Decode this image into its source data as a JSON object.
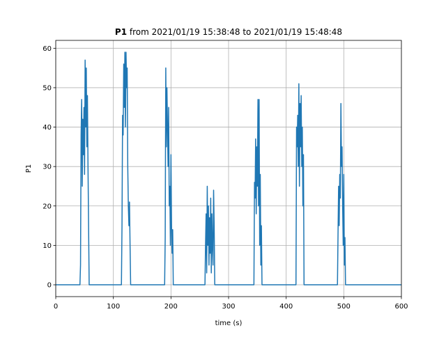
{
  "chart_data": {
    "type": "line",
    "title": {
      "bold": "P1",
      "rest": "from 2021/01/19 15:38:48 to 2021/01/19 15:48:48"
    },
    "xlabel": "time (s)",
    "ylabel": "P1",
    "xlim": [
      0,
      600
    ],
    "ylim": [
      -3,
      62
    ],
    "xticks": [
      0,
      100,
      200,
      300,
      400,
      500,
      600
    ],
    "yticks": [
      0,
      10,
      20,
      30,
      40,
      50,
      60
    ],
    "grid": true,
    "series": [
      {
        "name": "P1",
        "color": "#1f77b4",
        "x": [
          0,
          42,
          43,
          44,
          45,
          46,
          47,
          48,
          49,
          50,
          51,
          52,
          53,
          54,
          55,
          56,
          57,
          58,
          114,
          115,
          116,
          117,
          118,
          119,
          120,
          121,
          122,
          123,
          124,
          125,
          126,
          127,
          128,
          129,
          130,
          189,
          190,
          191,
          192,
          193,
          194,
          195,
          196,
          197,
          198,
          199,
          200,
          201,
          202,
          203,
          204,
          259,
          260,
          261,
          262,
          263,
          264,
          265,
          266,
          267,
          268,
          269,
          270,
          271,
          272,
          273,
          274,
          275,
          276,
          344,
          345,
          346,
          347,
          348,
          349,
          350,
          351,
          352,
          353,
          354,
          355,
          356,
          357,
          358,
          417,
          418,
          419,
          420,
          421,
          422,
          423,
          424,
          425,
          426,
          427,
          428,
          429,
          430,
          431,
          489,
          490,
          491,
          492,
          493,
          494,
          495,
          496,
          497,
          498,
          499,
          500,
          501,
          502,
          503,
          600
        ],
        "values": [
          0,
          0,
          5,
          38,
          47,
          25,
          42,
          33,
          45,
          28,
          57,
          40,
          55,
          35,
          48,
          30,
          15,
          0,
          0,
          15,
          43,
          38,
          56,
          45,
          59,
          40,
          59,
          50,
          55,
          30,
          20,
          15,
          21,
          10,
          0,
          0,
          12,
          55,
          35,
          50,
          40,
          30,
          45,
          20,
          25,
          10,
          33,
          15,
          8,
          14,
          0,
          0,
          10,
          18,
          3,
          25,
          10,
          20,
          5,
          17,
          8,
          22,
          3,
          18,
          10,
          5,
          24,
          15,
          0,
          0,
          26,
          22,
          37,
          18,
          35,
          25,
          47,
          20,
          47,
          10,
          28,
          5,
          15,
          0,
          0,
          40,
          35,
          43,
          30,
          51,
          25,
          46,
          35,
          48,
          30,
          40,
          20,
          33,
          0,
          0,
          13,
          25,
          15,
          28,
          22,
          46,
          30,
          35,
          20,
          10,
          28,
          5,
          12,
          0,
          0
        ]
      }
    ]
  }
}
